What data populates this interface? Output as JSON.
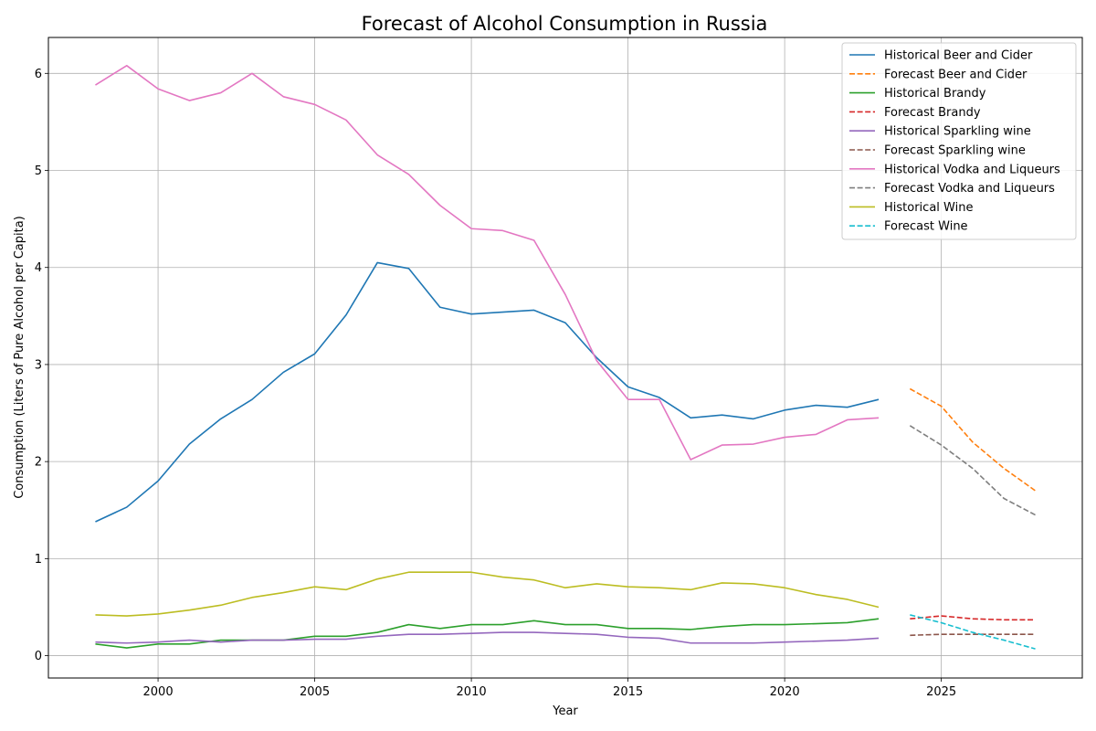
{
  "chart_data": {
    "type": "line",
    "title": "Forecast of Alcohol Consumption in Russia",
    "xlabel": "Year",
    "ylabel": "Consumption (Liters of Pure Alcohol per Capita)",
    "xlim": [
      1996.5,
      2029.5
    ],
    "ylim": [
      -0.23,
      6.37
    ],
    "x_ticks": [
      2000,
      2005,
      2010,
      2015,
      2020,
      2025
    ],
    "y_ticks": [
      0,
      1,
      2,
      3,
      4,
      5,
      6
    ],
    "grid": true,
    "legend_position": "top-right",
    "series": [
      {
        "name": "Historical Beer and Cider",
        "color": "#1f77b4",
        "style": "solid",
        "x": [
          1998,
          1999,
          2000,
          2001,
          2002,
          2003,
          2004,
          2005,
          2006,
          2007,
          2008,
          2009,
          2010,
          2011,
          2012,
          2013,
          2014,
          2015,
          2016,
          2017,
          2018,
          2019,
          2020,
          2021,
          2022,
          2023
        ],
        "y": [
          1.38,
          1.53,
          1.8,
          2.18,
          2.44,
          2.64,
          2.92,
          3.11,
          3.51,
          4.05,
          3.99,
          3.59,
          3.52,
          3.54,
          3.56,
          3.43,
          3.07,
          2.77,
          2.66,
          2.45,
          2.48,
          2.44,
          2.53,
          2.58,
          2.56,
          2.64
        ]
      },
      {
        "name": "Forecast Beer and Cider",
        "color": "#ff7f0e",
        "style": "dashed",
        "x": [
          2024,
          2025,
          2026,
          2027,
          2028
        ],
        "y": [
          2.75,
          2.57,
          2.2,
          1.93,
          1.7
        ]
      },
      {
        "name": "Historical Brandy",
        "color": "#2ca02c",
        "style": "solid",
        "x": [
          1998,
          1999,
          2000,
          2001,
          2002,
          2003,
          2004,
          2005,
          2006,
          2007,
          2008,
          2009,
          2010,
          2011,
          2012,
          2013,
          2014,
          2015,
          2016,
          2017,
          2018,
          2019,
          2020,
          2021,
          2022,
          2023
        ],
        "y": [
          0.12,
          0.08,
          0.12,
          0.12,
          0.16,
          0.16,
          0.16,
          0.2,
          0.2,
          0.24,
          0.32,
          0.28,
          0.32,
          0.32,
          0.36,
          0.32,
          0.32,
          0.28,
          0.28,
          0.27,
          0.3,
          0.32,
          0.32,
          0.33,
          0.34,
          0.38
        ]
      },
      {
        "name": "Forecast Brandy",
        "color": "#d62728",
        "style": "dashed",
        "x": [
          2024,
          2025,
          2026,
          2027,
          2028
        ],
        "y": [
          0.38,
          0.41,
          0.38,
          0.37,
          0.37
        ]
      },
      {
        "name": "Historical Sparkling wine",
        "color": "#9467bd",
        "style": "solid",
        "x": [
          1998,
          1999,
          2000,
          2001,
          2002,
          2003,
          2004,
          2005,
          2006,
          2007,
          2008,
          2009,
          2010,
          2011,
          2012,
          2013,
          2014,
          2015,
          2016,
          2017,
          2018,
          2019,
          2020,
          2021,
          2022,
          2023
        ],
        "y": [
          0.14,
          0.13,
          0.14,
          0.16,
          0.14,
          0.16,
          0.16,
          0.17,
          0.17,
          0.2,
          0.22,
          0.22,
          0.23,
          0.24,
          0.24,
          0.23,
          0.22,
          0.19,
          0.18,
          0.13,
          0.13,
          0.13,
          0.14,
          0.15,
          0.16,
          0.18
        ]
      },
      {
        "name": "Forecast Sparkling wine",
        "color": "#8c564b",
        "style": "dashed",
        "x": [
          2024,
          2025,
          2026,
          2027,
          2028
        ],
        "y": [
          0.21,
          0.22,
          0.22,
          0.22,
          0.22
        ]
      },
      {
        "name": "Historical Vodka and Liqueurs",
        "color": "#e377c2",
        "style": "solid",
        "x": [
          1998,
          1999,
          2000,
          2001,
          2002,
          2003,
          2004,
          2005,
          2006,
          2007,
          2008,
          2009,
          2010,
          2011,
          2012,
          2013,
          2014,
          2015,
          2016,
          2017,
          2018,
          2019,
          2020,
          2021,
          2022,
          2023
        ],
        "y": [
          5.88,
          6.08,
          5.84,
          5.72,
          5.8,
          6.0,
          5.76,
          5.68,
          5.52,
          5.16,
          4.96,
          4.64,
          4.4,
          4.38,
          4.28,
          3.72,
          3.04,
          2.64,
          2.64,
          2.02,
          2.17,
          2.18,
          2.25,
          2.28,
          2.43,
          2.45
        ]
      },
      {
        "name": "Forecast Vodka and Liqueurs",
        "color": "#7f7f7f",
        "style": "dashed",
        "x": [
          2024,
          2025,
          2026,
          2027,
          2028
        ],
        "y": [
          2.37,
          2.17,
          1.93,
          1.62,
          1.45
        ]
      },
      {
        "name": "Historical Wine",
        "color": "#bcbd22",
        "style": "solid",
        "x": [
          1998,
          1999,
          2000,
          2001,
          2002,
          2003,
          2004,
          2005,
          2006,
          2007,
          2008,
          2009,
          2010,
          2011,
          2012,
          2013,
          2014,
          2015,
          2016,
          2017,
          2018,
          2019,
          2020,
          2021,
          2022,
          2023
        ],
        "y": [
          0.42,
          0.41,
          0.43,
          0.47,
          0.52,
          0.6,
          0.65,
          0.71,
          0.68,
          0.79,
          0.86,
          0.86,
          0.86,
          0.81,
          0.78,
          0.7,
          0.74,
          0.71,
          0.7,
          0.68,
          0.75,
          0.74,
          0.7,
          0.63,
          0.58,
          0.5
        ]
      },
      {
        "name": "Forecast Wine",
        "color": "#17becf",
        "style": "dashed",
        "x": [
          2024,
          2025,
          2026,
          2027,
          2028
        ],
        "y": [
          0.42,
          0.34,
          0.24,
          0.16,
          0.07
        ]
      }
    ]
  }
}
